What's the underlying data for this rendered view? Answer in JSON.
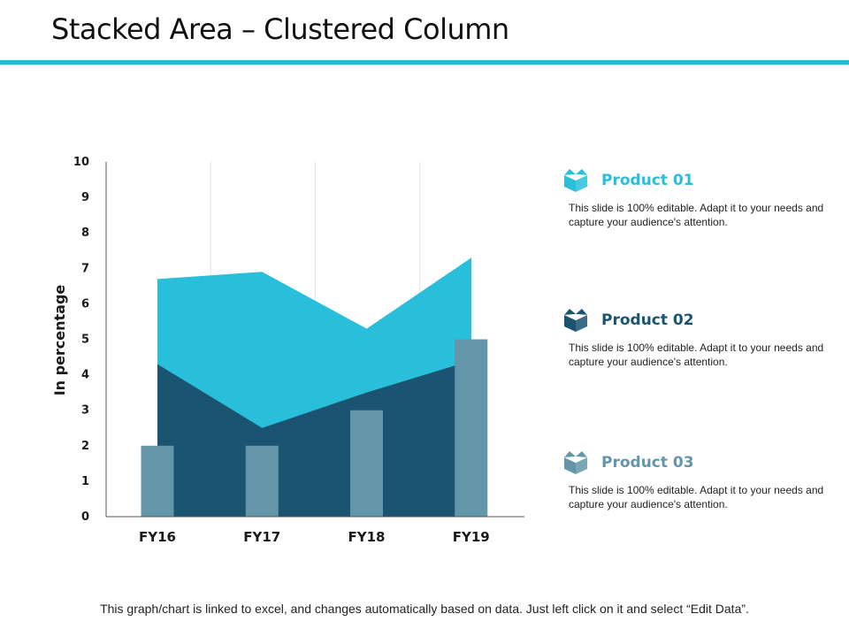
{
  "slide": {
    "title": "Stacked Area – Clustered Column",
    "footnote": "This graph/chart is linked to excel, and changes automatically  based on data. Just left click on it and select “Edit Data”.",
    "accent_color": "#29b9d6"
  },
  "chart_data": {
    "type": "area",
    "subtype": "stacked area + clustered column",
    "title": "",
    "xlabel": "",
    "ylabel": "In percentage",
    "categories": [
      "FY16",
      "FY17",
      "FY18",
      "FY19"
    ],
    "ylim": [
      0,
      10
    ],
    "yticks": [
      0,
      1,
      2,
      3,
      4,
      5,
      6,
      7,
      8,
      9,
      10
    ],
    "grid": "vertical",
    "legend": "right",
    "series": [
      {
        "name": "Product 01",
        "kind": "stacked-area",
        "values": [
          2.4,
          4.4,
          1.8,
          2.9
        ],
        "color": "#29bfdb"
      },
      {
        "name": "Product 02",
        "kind": "stacked-area",
        "values": [
          4.3,
          2.5,
          3.5,
          4.4
        ],
        "color": "#1a5470"
      },
      {
        "name": "Product 03",
        "kind": "column",
        "values": [
          2,
          2,
          3,
          5
        ],
        "color": "#6496a9"
      }
    ]
  },
  "legend": {
    "items": [
      {
        "label": "Product 01",
        "color": "#29bfdb",
        "icon": "box-icon",
        "description": "This slide is 100% editable. Adapt it to your needs and capture your audience's attention."
      },
      {
        "label": "Product 02",
        "color": "#1a5470",
        "icon": "box-icon",
        "description": "This slide is 100% editable. Adapt it to your needs and capture your audience's attention."
      },
      {
        "label": "Product 03",
        "color": "#6496a9",
        "icon": "box-icon",
        "description": "This slide is 100% editable. Adapt it to your needs and capture your audience's attention."
      }
    ]
  }
}
